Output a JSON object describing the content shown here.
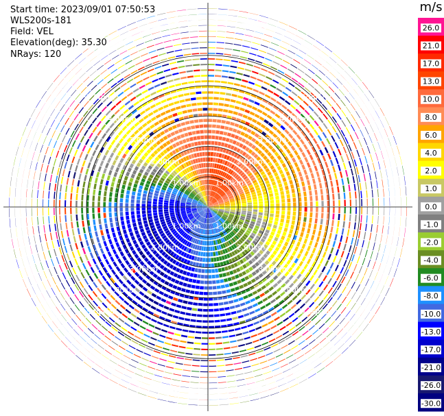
{
  "header": {
    "start_time": "Start time: 2023/09/01 07:50:53",
    "station": "WLS200s-181",
    "field": "Field: VEL",
    "elevation": "Elevation(deg): 35.30",
    "nrays": "NRays: 120"
  },
  "colorbar": {
    "unit": "m/s",
    "labels": [
      "26.0",
      "21.0",
      "17.0",
      "13.0",
      "10.0",
      "8.0",
      "6.0",
      "4.0",
      "2.0",
      "1.0",
      "0.0",
      "-1.0",
      "-2.0",
      "-4.0",
      "-6.0",
      "-8.0",
      "-10.0",
      "-13.0",
      "-17.0",
      "-21.0",
      "-26.0",
      "-30.0"
    ],
    "colors": [
      "#ff1493",
      "#ff0000",
      "#ff2a00",
      "#ff4500",
      "#ff6a3c",
      "#ff8c55",
      "#ffa500",
      "#ffd700",
      "#ffff00",
      "#c8c864",
      "#a0a0a0",
      "#808080",
      "#9acd32",
      "#6b8e23",
      "#228b22",
      "#1e90ff",
      "#4169e1",
      "#0000ff",
      "#0000cd",
      "#00008b",
      "#191970",
      "#000080"
    ]
  },
  "chart_data": {
    "type": "ppi",
    "field": "VEL",
    "units": "m/s",
    "nrays": 120,
    "range_rings_km": [
      1.0,
      2.0,
      3.0,
      4.0,
      5.0
    ],
    "ring_labels": [
      "1.00km",
      "2.00km",
      "3.00km",
      "4.00km",
      "5.00km"
    ],
    "velocity_pattern": {
      "receding_sector_deg": [
        300,
        90
      ],
      "approaching_sector_deg": [
        150,
        270
      ],
      "max_valid_range_km": 3.2
    },
    "grid": true
  }
}
